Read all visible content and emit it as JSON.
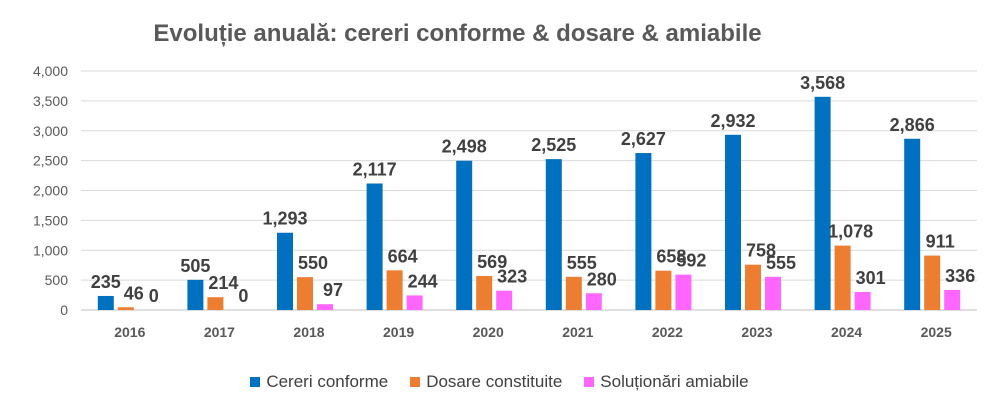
{
  "chart_data": {
    "type": "bar",
    "title": "Evoluție anuală: cereri conforme & dosare & amiabile",
    "xlabel": "",
    "ylabel": "",
    "categories": [
      "2016",
      "2017",
      "2018",
      "2019",
      "2020",
      "2021",
      "2022",
      "2023",
      "2024",
      "2025"
    ],
    "ylim": [
      0,
      4000
    ],
    "yticks": [
      "0",
      "500",
      "1,000",
      "1,500",
      "2,000",
      "2,500",
      "3,000",
      "3,500",
      "4,000"
    ],
    "grid": true,
    "legend_position": "bottom",
    "series": [
      {
        "name": "Cereri conforme",
        "color": "#0070C0",
        "values": [
          235,
          505,
          1293,
          2117,
          2498,
          2525,
          2627,
          2932,
          3568,
          2866
        ]
      },
      {
        "name": "Dosare constituite",
        "color": "#ED7D31",
        "values": [
          46,
          214,
          550,
          664,
          569,
          555,
          658,
          758,
          1078,
          911
        ]
      },
      {
        "name": "Soluționări amiabile",
        "color": "#FF66FF",
        "values": [
          0,
          0,
          97,
          244,
          323,
          280,
          592,
          555,
          301,
          336
        ]
      }
    ]
  }
}
